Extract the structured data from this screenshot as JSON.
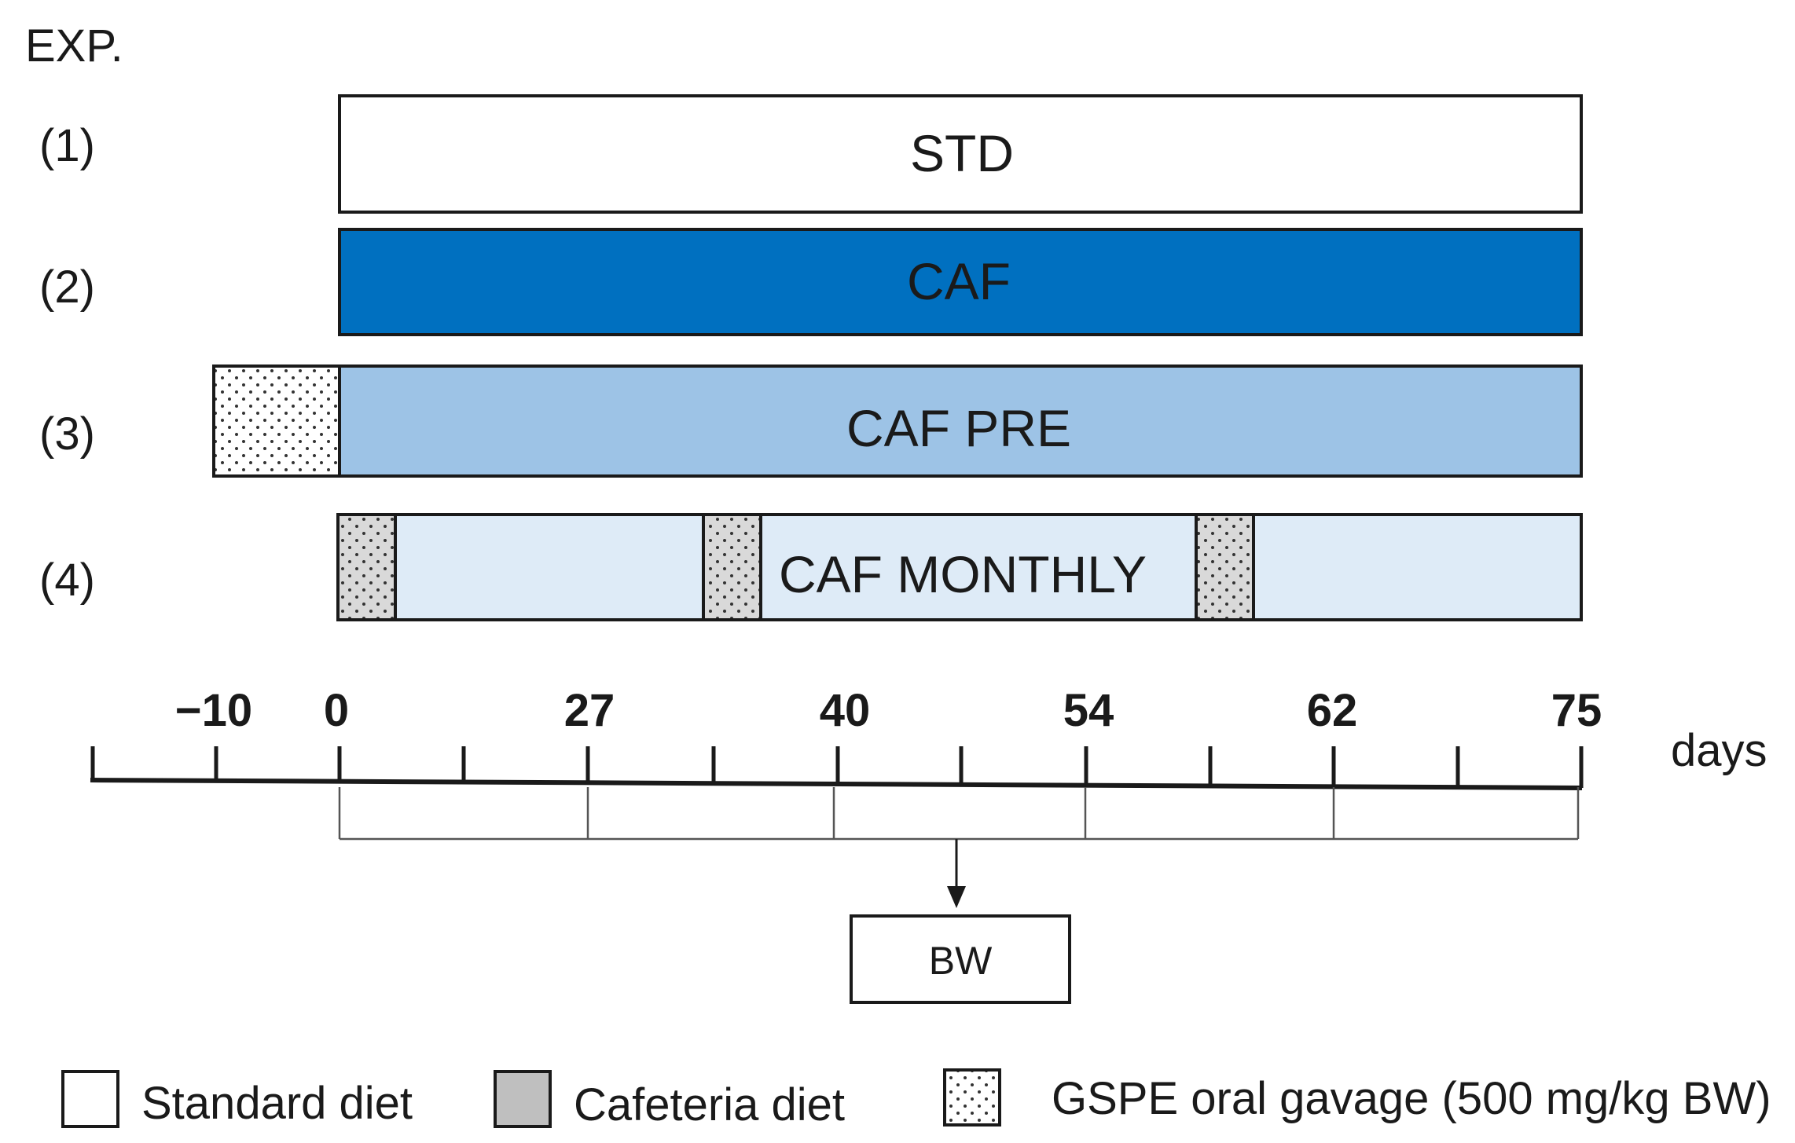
{
  "exp_label": "EXP.",
  "rows": [
    {
      "id": "(1)",
      "label": "STD"
    },
    {
      "id": "(2)",
      "label": "CAF"
    },
    {
      "id": "(3)",
      "label": "CAF PRE"
    },
    {
      "id": "(4)",
      "label": "CAF MONTHLY"
    }
  ],
  "axis": {
    "tick_labels": [
      "−10",
      "0",
      "27",
      "40",
      "54",
      "62",
      "75"
    ],
    "unit_label": "days"
  },
  "bw_label": "BW",
  "legend": [
    {
      "label": "Standard diet"
    },
    {
      "label": "Cafeteria diet"
    },
    {
      "label": "GSPE oral gavage (500 mg/kg BW)"
    }
  ],
  "colors": {
    "std": "#ffffff",
    "caf": "#0070c0",
    "caf_pre": "#9dc3e6",
    "caf_monthly": "#deebf7",
    "cafeteria_swatch": "#bfbfbf",
    "stroke": "#1a1a1a"
  }
}
